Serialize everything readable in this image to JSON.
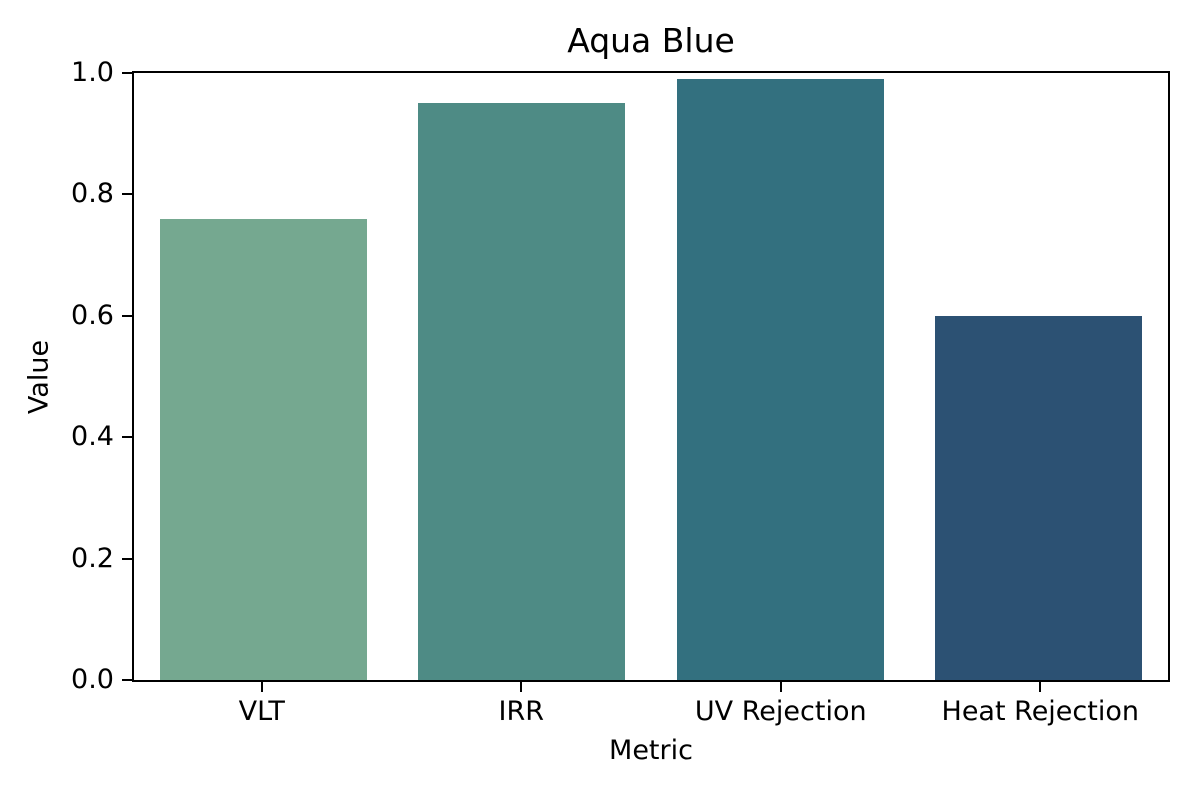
{
  "chart_data": {
    "type": "bar",
    "title": "Aqua Blue",
    "xlabel": "Metric",
    "ylabel": "Value",
    "categories": [
      "VLT",
      "IRR",
      "UV Rejection",
      "Heat Rejection"
    ],
    "values": [
      0.76,
      0.95,
      0.99,
      0.6
    ],
    "bar_colors": [
      "#75a890",
      "#4e8b85",
      "#33707f",
      "#2c5173"
    ],
    "ylim": [
      0.0,
      1.0
    ],
    "yticks": [
      0.0,
      0.2,
      0.4,
      0.6,
      0.8,
      1.0
    ],
    "ytick_labels": [
      "0.0",
      "0.2",
      "0.4",
      "0.6",
      "0.8",
      "1.0"
    ],
    "bar_width_fraction": 0.8,
    "grid": false,
    "legend": "none",
    "background_color": "#ffffff",
    "axis_color": "#000000"
  }
}
